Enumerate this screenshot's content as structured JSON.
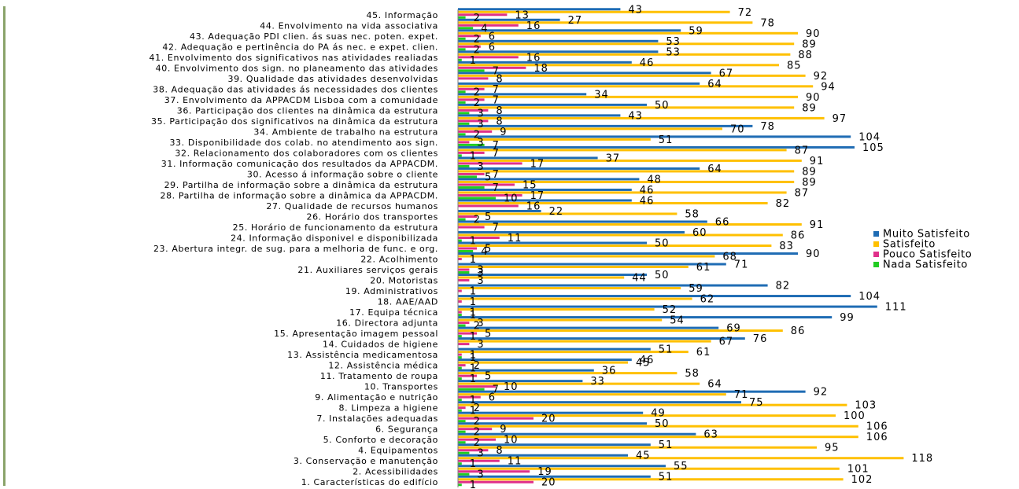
{
  "chart_data": {
    "type": "bar",
    "orientation": "horizontal",
    "categories": [
      "1. Características do edifício",
      "2. Acessibilidades",
      "3. Conservação e manutenção",
      "4. Equipamentos",
      "5. Conforto e decoração",
      "6. Segurança",
      "7. Instalações adequadas",
      "8. Limpeza a higiene",
      "9. Alimentação e nutrição",
      "10. Transportes",
      "11. Tratamento de roupa",
      "12. Assistência médica",
      "13. Assistência medicamentosa",
      "14. Cuidados de higiene",
      "15. Apresentação imagem pessoal",
      "16. Directora adjunta",
      "17. Equipa técnica",
      "18. AAE/AAD",
      "19. Administrativos",
      "20. Motoristas",
      "21. Auxiliares serviços gerais",
      "22. Acolhimento",
      "23. Abertura integr. de sug. para a melhoria de func. e org.",
      "24. Informação disponivel e disponibilizada",
      "25. Horário de funcionamento da estrutura",
      "26. Horário dos transportes",
      "27. Qualidade de recursos humanos",
      "28. Partilha de informação sobre a dinâmica da APPACDM.",
      "29. Partilha de informação sobre a dinâmica da estrutura",
      "30. Acesso á informação sobre o cliente",
      "31. Informação comunicação dos resultados da APPACDM.",
      "32. Relacionamento dos colaboradores com os clientes",
      "33. Disponibilidade dos colab. no atendimento aos sign.",
      "34. Ambiente de trabalho na estrutura",
      "35. Participação dos significativos na dinâmica da estrutura",
      "36. Participação dos clientes na dinâmica da estrutura",
      "37. Envolvimento da APPACDM Lisboa com a comunidade",
      "38. Adequação das atividades ás necessidades dos clientes",
      "39. Qualidade das atividades desenvolvidas",
      "40. Envolvimento dos sign. no planeamento das atividades",
      "41. Envolvimento dos significativos nas atividades realiadas",
      "42. Adequação e pertinência do PA ás nec. e expet. clien.",
      "43. Adequação PDI clien. ás suas nec. poten. expet.",
      "44. Envolvimento na vida associativa",
      "45. Informação"
    ],
    "series": [
      {
        "name": "Muito Satisfeito",
        "color": "#1f6cb4",
        "values": [
          51,
          55,
          45,
          51,
          63,
          50,
          49,
          75,
          92,
          33,
          36,
          46,
          51,
          76,
          69,
          99,
          111,
          104,
          82,
          50,
          71,
          90,
          50,
          60,
          66,
          22,
          46,
          46,
          48,
          64,
          37,
          105,
          104,
          78,
          43,
          50,
          34,
          64,
          67,
          46,
          53,
          53,
          59,
          27,
          43
        ]
      },
      {
        "name": "Satisfeito",
        "color": "#ffc000",
        "values": [
          102,
          101,
          118,
          95,
          106,
          106,
          100,
          103,
          71,
          64,
          58,
          45,
          61,
          67,
          86,
          54,
          52,
          62,
          59,
          44,
          61,
          68,
          83,
          86,
          91,
          58,
          82,
          87,
          89,
          89,
          91,
          87,
          51,
          70,
          97,
          89,
          90,
          94,
          92,
          85,
          88,
          89,
          90,
          78,
          72
        ]
      },
      {
        "name": "Pouco Satisfeito",
        "color": "#e0308a",
        "values": [
          20,
          19,
          11,
          8,
          10,
          9,
          20,
          2,
          6,
          10,
          5,
          2,
          1,
          3,
          5,
          3,
          1,
          1,
          1,
          3,
          3,
          1,
          5,
          11,
          7,
          5,
          16,
          17,
          15,
          7,
          17,
          7,
          3,
          9,
          8,
          8,
          7,
          7,
          8,
          18,
          16,
          6,
          6,
          16,
          13
        ]
      },
      {
        "name": "Nada Satisfeito",
        "color": "#22cc22",
        "values": [
          1,
          3,
          1,
          3,
          2,
          2,
          2,
          1,
          1,
          7,
          1,
          1,
          1,
          null,
          1,
          2,
          1,
          null,
          null,
          null,
          3,
          null,
          4,
          1,
          null,
          2,
          null,
          10,
          7,
          5,
          3,
          1,
          7,
          2,
          3,
          3,
          2,
          2,
          null,
          7,
          1,
          2,
          2,
          4,
          2
        ]
      }
    ],
    "legend": [
      "Muito Satisfeito",
      "Satisfeito",
      "Pouco Satisfeito",
      "Nada Satisfeito"
    ],
    "legend_position": "right",
    "xlim": [
      0,
      125
    ],
    "grid": false,
    "title": "",
    "xlabel": "",
    "ylabel": ""
  }
}
